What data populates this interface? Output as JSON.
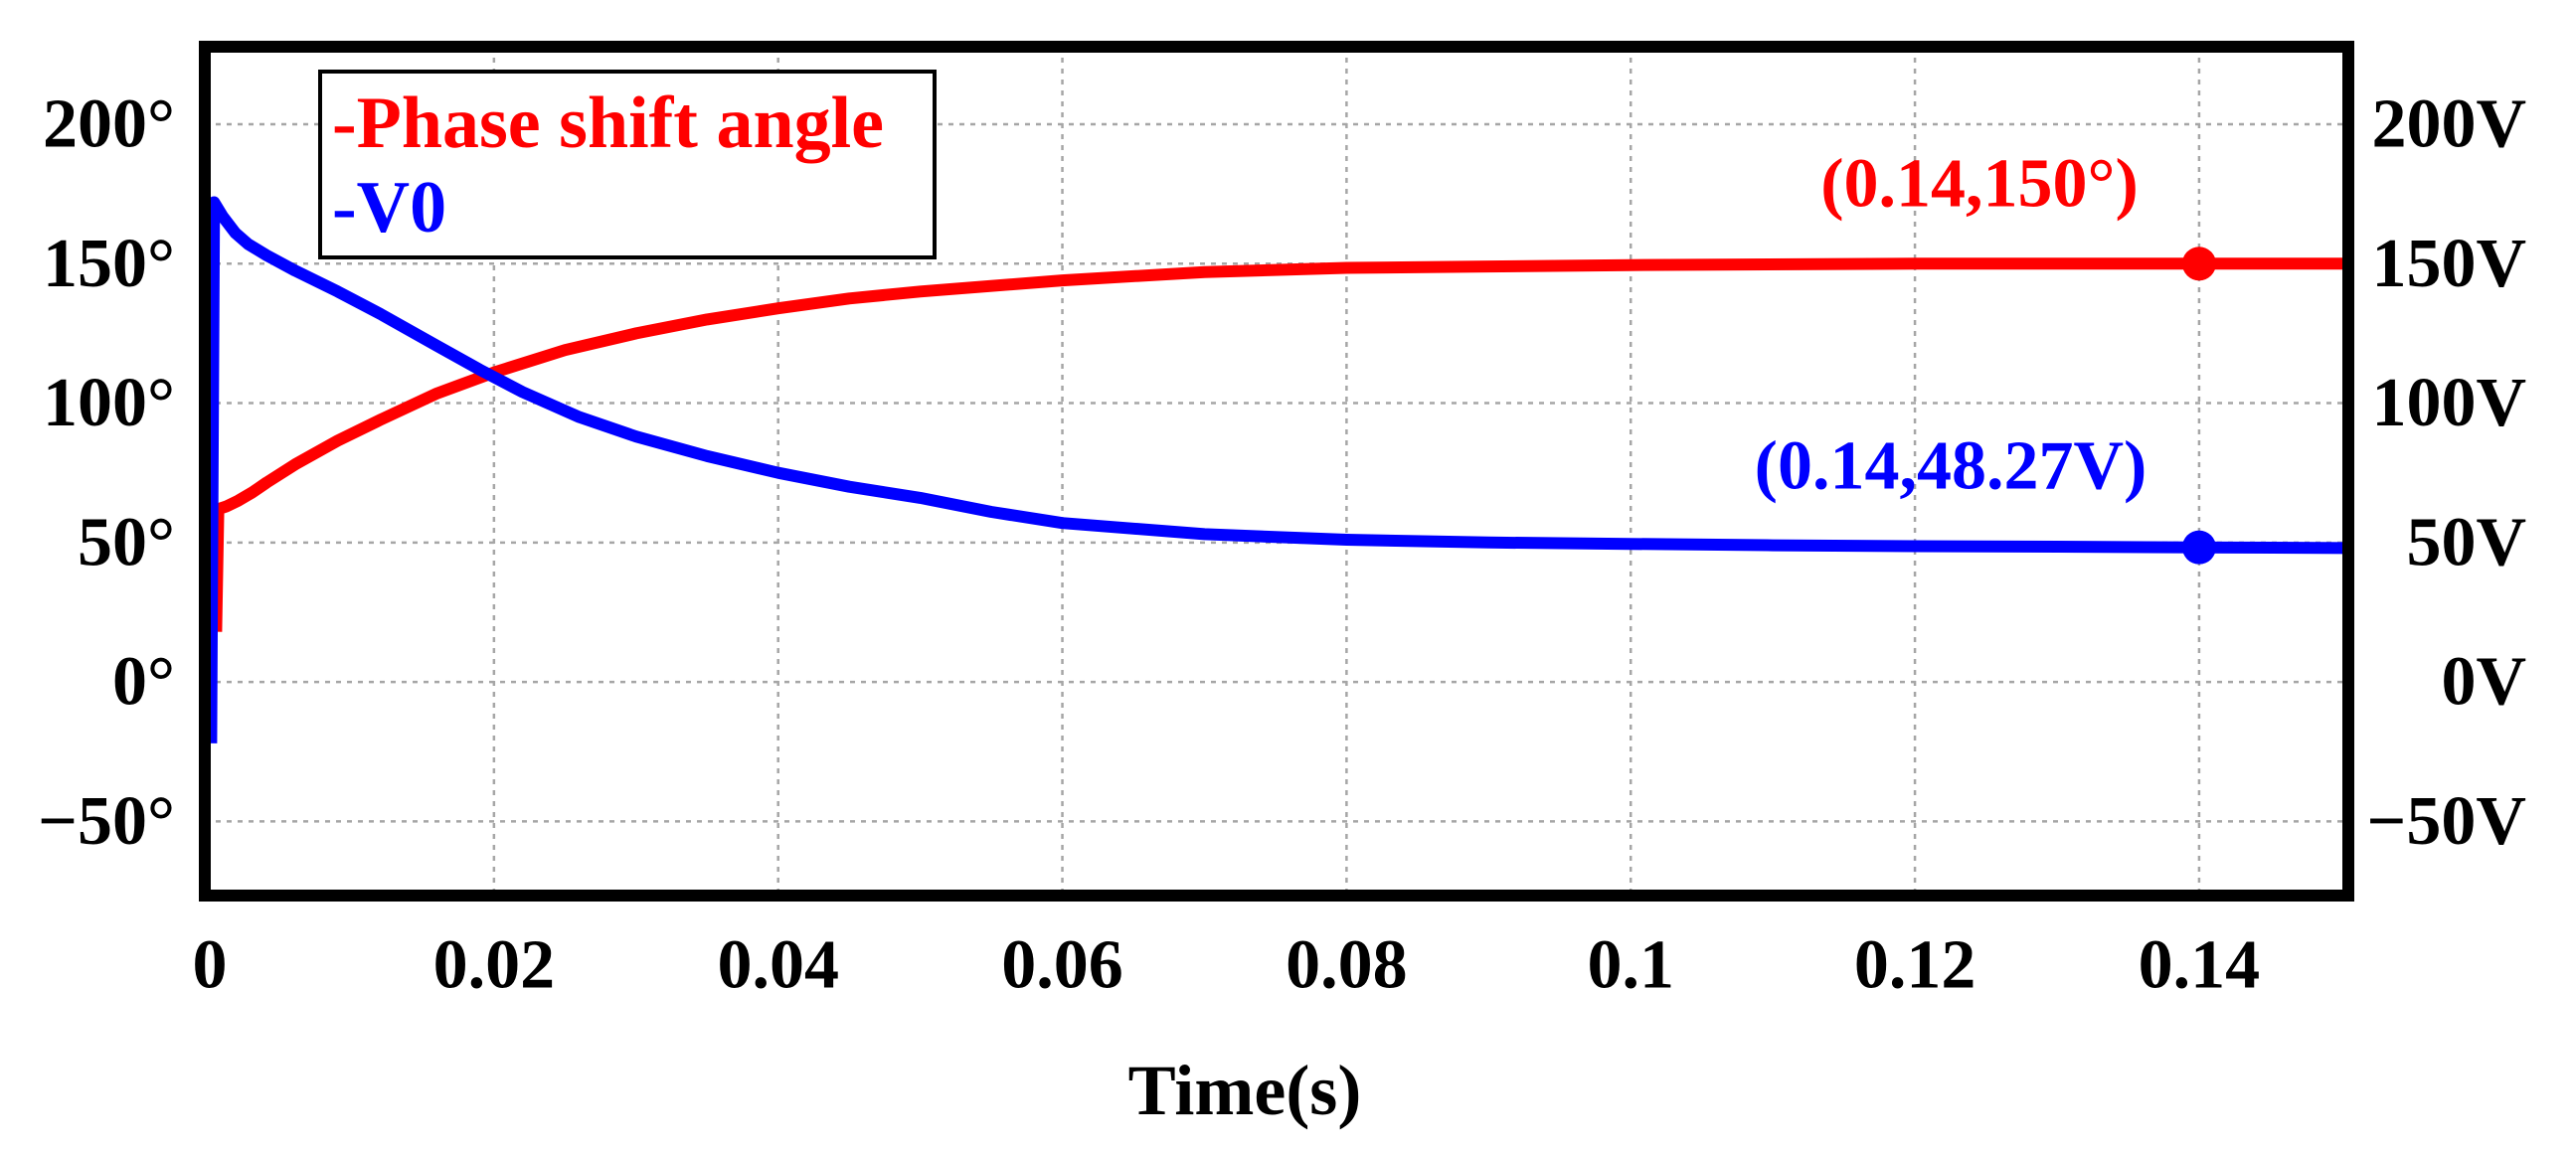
{
  "chart_data": {
    "type": "line",
    "xlabel": "Time(s)",
    "xlim": [
      -0.00035,
      0.1505
    ],
    "ylim": [
      -76.6,
      227.8
    ],
    "grid": true,
    "x_ticks": [
      0,
      0.02,
      0.04,
      0.06,
      0.08,
      0.1,
      0.12,
      0.14
    ],
    "x_tick_labels": [
      "0",
      "0.02",
      "0.04",
      "0.06",
      "0.08",
      "0.1",
      "0.12",
      "0.14"
    ],
    "y_ticks": [
      200,
      150,
      100,
      50,
      0,
      -50
    ],
    "y_tick_labels_left": [
      "200°",
      "150°",
      "100°",
      "50°",
      "0°",
      "−50°"
    ],
    "y_tick_labels_right": [
      "200V",
      "150V",
      "100V",
      "50V",
      "0V",
      "−50V"
    ],
    "legend_position": "top-left",
    "series": [
      {
        "label": "-Phase shift angle",
        "color": "#ff0000",
        "x": [
          0.00045,
          0.0006,
          0.0012,
          0.002,
          0.003,
          0.004,
          0.006,
          0.009,
          0.012,
          0.016,
          0.02,
          0.025,
          0.03,
          0.035,
          0.04,
          0.045,
          0.05,
          0.06,
          0.07,
          0.08,
          0.09,
          0.1,
          0.12,
          0.14,
          0.1505
        ],
        "y": [
          18,
          62,
          63,
          65,
          68,
          71.5,
          78,
          86.5,
          94,
          103.5,
          111,
          119,
          125,
          130,
          134,
          137.5,
          140,
          144,
          147,
          148.5,
          149,
          149.5,
          150,
          150,
          150
        ]
      },
      {
        "label": "-V0",
        "color": "#0000ff",
        "x": [
          0.0001,
          0.0003,
          0.0009,
          0.0018,
          0.0027,
          0.004,
          0.006,
          0.009,
          0.012,
          0.016,
          0.019,
          0.022,
          0.026,
          0.03,
          0.035,
          0.04,
          0.045,
          0.05,
          0.055,
          0.06,
          0.065,
          0.07,
          0.08,
          0.09,
          0.1,
          0.11,
          0.12,
          0.13,
          0.14,
          0.1505
        ],
        "y": [
          -22,
          172,
          167,
          161,
          157,
          153,
          147.5,
          140,
          132,
          120.5,
          112,
          104,
          95,
          88,
          81,
          75,
          70,
          66,
          61,
          57,
          55,
          53,
          51,
          50,
          49.5,
          49,
          48.7,
          48.5,
          48.27,
          48
        ]
      }
    ],
    "annotations": [
      {
        "text": "(0.14,150°)",
        "series": 0,
        "x": 0.14,
        "y": 150,
        "color": "#ff0000"
      },
      {
        "text": "(0.14,48.27V)",
        "series": 1,
        "x": 0.14,
        "y": 48.27,
        "color": "#0000ff"
      }
    ]
  }
}
